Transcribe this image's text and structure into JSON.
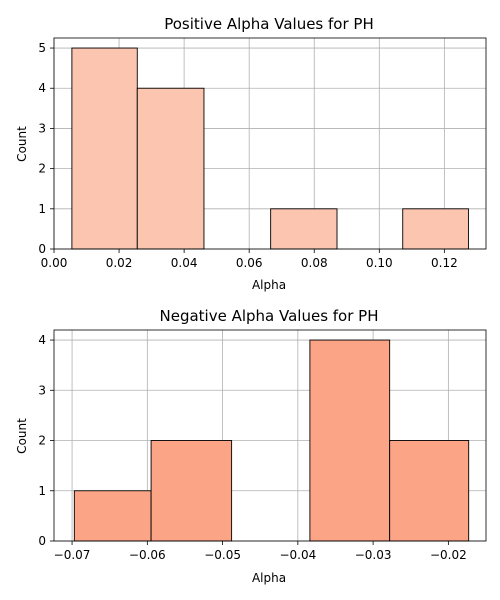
{
  "chart_data": [
    {
      "type": "histogram",
      "title": "Positive Alpha Values for PH",
      "xlabel": "Alpha",
      "ylabel": "Count",
      "bar_color": "#fcc5b0",
      "grid": true,
      "xlim": [
        0.0,
        0.1328
      ],
      "ylim": [
        0,
        5.25
      ],
      "xticks": [
        0.0,
        0.02,
        0.04,
        0.06,
        0.08,
        0.1,
        0.12
      ],
      "xtick_labels": [
        "0.00",
        "0.02",
        "0.04",
        "0.06",
        "0.08",
        "0.10",
        "0.12"
      ],
      "yticks": [
        0,
        1,
        2,
        3,
        4,
        5
      ],
      "ytick_labels": [
        "0",
        "1",
        "2",
        "3",
        "4",
        "5"
      ],
      "bins": [
        {
          "x0": 0.0055,
          "x1": 0.0256,
          "count": 5
        },
        {
          "x0": 0.0256,
          "x1": 0.0461,
          "count": 4
        },
        {
          "x0": 0.0461,
          "x1": 0.0666,
          "count": 0
        },
        {
          "x0": 0.0666,
          "x1": 0.087,
          "count": 1
        },
        {
          "x0": 0.087,
          "x1": 0.1072,
          "count": 0
        },
        {
          "x0": 0.1072,
          "x1": 0.1274,
          "count": 1
        }
      ]
    },
    {
      "type": "histogram",
      "title": "Negative Alpha Values for PH",
      "xlabel": "Alpha",
      "ylabel": "Count",
      "bar_color": "#fca486",
      "grid": true,
      "xlim": [
        -0.0724,
        -0.015
      ],
      "ylim": [
        0,
        4.2
      ],
      "xticks": [
        -0.07,
        -0.06,
        -0.05,
        -0.04,
        -0.03,
        -0.02
      ],
      "xtick_labels": [
        "−0.07",
        "−0.06",
        "−0.05",
        "−0.04",
        "−0.03",
        "−0.02"
      ],
      "yticks": [
        0,
        1,
        2,
        3,
        4
      ],
      "ytick_labels": [
        "0",
        "1",
        "2",
        "3",
        "4"
      ],
      "bins": [
        {
          "x0": -0.0697,
          "x1": -0.0595,
          "count": 1
        },
        {
          "x0": -0.0595,
          "x1": -0.0488,
          "count": 2
        },
        {
          "x0": -0.0488,
          "x1": -0.0384,
          "count": 0
        },
        {
          "x0": -0.0384,
          "x1": -0.0278,
          "count": 4
        },
        {
          "x0": -0.0278,
          "x1": -0.0173,
          "count": 2
        }
      ]
    }
  ]
}
